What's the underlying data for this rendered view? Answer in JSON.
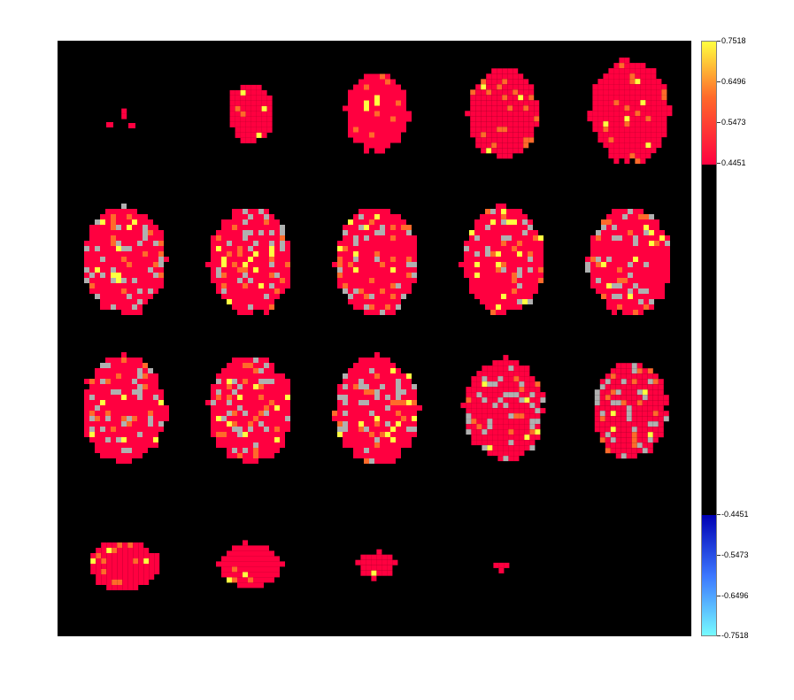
{
  "chart_data": {
    "type": "heatmap",
    "title": "",
    "description": "Montage of 20 axial brain slices (5 columns x 4 rows) over black background with thresholded overlay",
    "grid": {
      "rows": 4,
      "cols": 5
    },
    "colors": {
      "background": "#000000",
      "positive_low": "#ff0040",
      "positive_mid": "#ff6a2a",
      "positive_high": "#ffff40",
      "negative_low": "#0000b4",
      "negative_mid": "#3c78ff",
      "negative_high": "#78ffff",
      "anatomy_gray": "#b0b0b0"
    },
    "colorbar": {
      "range": [
        -0.7518,
        0.7518
      ],
      "threshold": 0.4451,
      "tick_labels": [
        "0.7518",
        "0.6496",
        "0.5473",
        "0.4451",
        "-0.4451",
        "-0.5473",
        "-0.6496",
        "-0.7518"
      ]
    },
    "slices": [
      {
        "extent": 0.12
      },
      {
        "extent": 0.55
      },
      {
        "extent": 0.75
      },
      {
        "extent": 0.85
      },
      {
        "extent": 0.95
      },
      {
        "extent": 1.0
      },
      {
        "extent": 1.0
      },
      {
        "extent": 1.0
      },
      {
        "extent": 1.0
      },
      {
        "extent": 1.0
      },
      {
        "extent": 1.0
      },
      {
        "extent": 1.0
      },
      {
        "extent": 1.0
      },
      {
        "extent": 0.95
      },
      {
        "extent": 0.9
      },
      {
        "extent": 0.85
      },
      {
        "extent": 0.75
      },
      {
        "extent": 0.45
      },
      {
        "extent": 0.18
      },
      {
        "extent": 0.06
      }
    ]
  }
}
